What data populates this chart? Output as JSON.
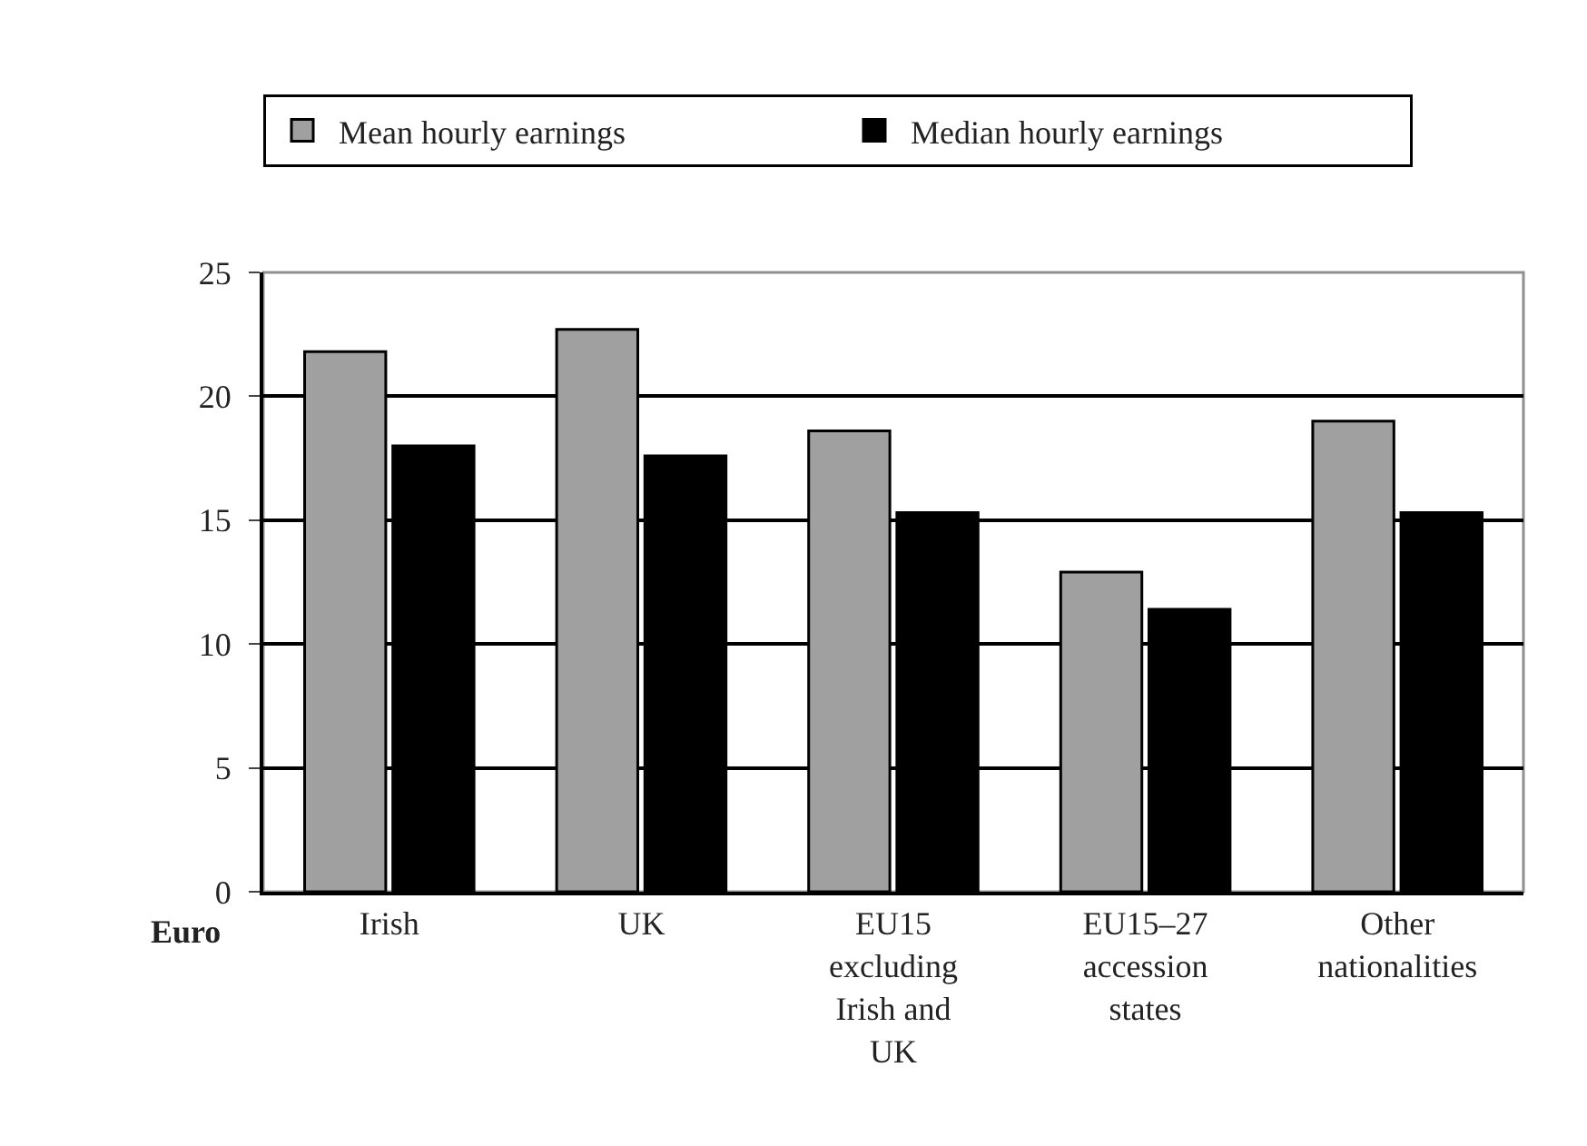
{
  "chart_data": {
    "type": "bar",
    "ylabel": "Euro",
    "categories": [
      "Irish",
      "UK",
      "EU15 excluding Irish and UK",
      "EU15–27 accession states",
      "Other nationalities"
    ],
    "series": [
      {
        "name": "Mean hourly earnings",
        "color": "#a0a0a0",
        "values": [
          21.8,
          22.7,
          18.6,
          12.9,
          19.0
        ]
      },
      {
        "name": "Median hourly earnings",
        "color": "#000000",
        "values": [
          18.0,
          17.6,
          15.3,
          11.4,
          15.3
        ]
      }
    ],
    "ylim": [
      0,
      25
    ],
    "yticks": [
      0,
      5,
      10,
      15,
      20,
      25
    ],
    "grid": "y",
    "legend": "top"
  }
}
